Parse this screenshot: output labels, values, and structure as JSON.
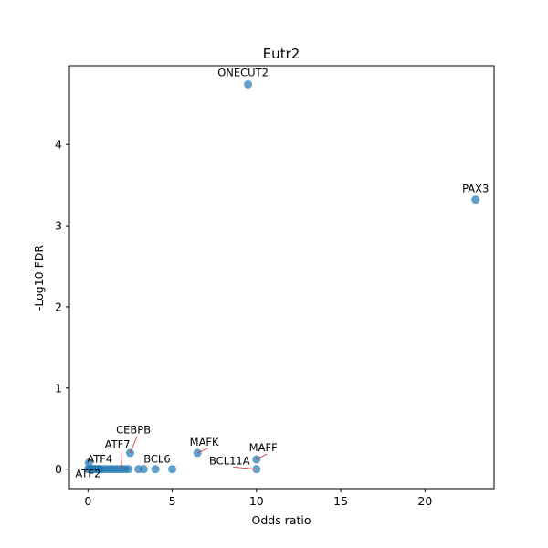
{
  "chart_data": {
    "type": "scatter",
    "title": "Eutr2",
    "xlabel": "Odds ratio",
    "ylabel": "-Log10 FDR",
    "xlim": [
      -1.1,
      24.1
    ],
    "ylim": [
      -0.24,
      4.97
    ],
    "xticks": [
      0,
      5,
      10,
      15,
      20
    ],
    "yticks": [
      0,
      1,
      2,
      3,
      4
    ],
    "grid": false,
    "marker_color": "#1f77b4",
    "annotation_line_color": "#d62728",
    "points": [
      {
        "x": 9.5,
        "y": 4.74
      },
      {
        "x": 23.0,
        "y": 3.32
      },
      {
        "x": 2.5,
        "y": 0.2
      },
      {
        "x": 6.5,
        "y": 0.2
      },
      {
        "x": 10.0,
        "y": 0.12
      },
      {
        "x": 0.05,
        "y": 0.08
      },
      {
        "x": 0.0,
        "y": 0.0
      },
      {
        "x": 0.1,
        "y": 0.0
      },
      {
        "x": 0.2,
        "y": 0.0
      },
      {
        "x": 0.3,
        "y": 0.0
      },
      {
        "x": 0.4,
        "y": 0.0
      },
      {
        "x": 0.5,
        "y": 0.0
      },
      {
        "x": 0.6,
        "y": 0.0
      },
      {
        "x": 0.7,
        "y": 0.0
      },
      {
        "x": 0.8,
        "y": 0.0
      },
      {
        "x": 1.0,
        "y": 0.0
      },
      {
        "x": 1.2,
        "y": 0.0
      },
      {
        "x": 1.4,
        "y": 0.0
      },
      {
        "x": 1.6,
        "y": 0.0
      },
      {
        "x": 1.8,
        "y": 0.0
      },
      {
        "x": 2.0,
        "y": 0.0
      },
      {
        "x": 2.2,
        "y": 0.0
      },
      {
        "x": 2.4,
        "y": 0.0
      },
      {
        "x": 3.0,
        "y": 0.0
      },
      {
        "x": 3.3,
        "y": 0.0
      },
      {
        "x": 4.0,
        "y": 0.0
      },
      {
        "x": 5.0,
        "y": 0.0
      },
      {
        "x": 10.0,
        "y": 0.0
      }
    ],
    "annotations": [
      {
        "text": "ONECUT2",
        "x": 9.5,
        "y": 4.74,
        "tx": 9.2,
        "ty": 4.84
      },
      {
        "text": "PAX3",
        "x": 23.0,
        "y": 3.32,
        "tx": 23.0,
        "ty": 3.41
      },
      {
        "text": "CEBPB",
        "x": 2.5,
        "y": 0.2,
        "tx": 2.7,
        "ty": 0.44
      },
      {
        "text": "MAFK",
        "x": 6.5,
        "y": 0.2,
        "tx": 6.9,
        "ty": 0.29
      },
      {
        "text": "MAFF",
        "x": 10.0,
        "y": 0.12,
        "tx": 10.4,
        "ty": 0.22
      },
      {
        "text": "ATF7",
        "x": 2.0,
        "y": 0.0,
        "tx": 1.75,
        "ty": 0.26
      },
      {
        "text": "ATF4",
        "x": 0.7,
        "y": 0.0,
        "tx": 0.7,
        "ty": 0.08
      },
      {
        "text": "BCL6",
        "x": 4.0,
        "y": 0.0,
        "tx": 4.1,
        "ty": 0.08
      },
      {
        "text": "BCL11A",
        "x": 10.0,
        "y": 0.0,
        "tx": 8.4,
        "ty": 0.06
      },
      {
        "text": "ATF2",
        "x": 0.0,
        "y": 0.0,
        "tx": 0.0,
        "ty": -0.1
      }
    ]
  }
}
